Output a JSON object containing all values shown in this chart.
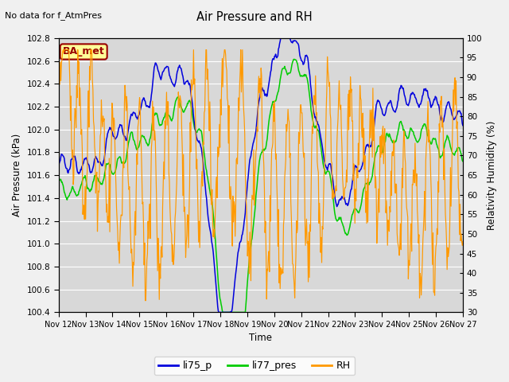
{
  "title": "Air Pressure and RH",
  "top_left_text": "No data for f_AtmPres",
  "ylabel_left": "Air Pressure (kPa)",
  "ylabel_right": "Relativity Humidity (%)",
  "xlabel": "Time",
  "ylim_left": [
    100.4,
    102.8
  ],
  "ylim_right": [
    30,
    100
  ],
  "yticks_left": [
    100.4,
    100.6,
    100.8,
    101.0,
    101.2,
    101.4,
    101.6,
    101.8,
    102.0,
    102.2,
    102.4,
    102.6,
    102.8
  ],
  "yticks_right": [
    30,
    35,
    40,
    45,
    50,
    55,
    60,
    65,
    70,
    75,
    80,
    85,
    90,
    95,
    100
  ],
  "xtick_labels": [
    "Nov 12",
    "Nov 13",
    "Nov 14",
    "Nov 15",
    "Nov 16",
    "Nov 17",
    "Nov 18",
    "Nov 19",
    "Nov 20",
    "Nov 21",
    "Nov 22",
    "Nov 23",
    "Nov 24",
    "Nov 25",
    "Nov 26",
    "Nov 27"
  ],
  "legend_labels": [
    "li75_p",
    "li77_pres",
    "RH"
  ],
  "legend_colors": [
    "#0000dd",
    "#00cc00",
    "#ff9900"
  ],
  "fig_bg_color": "#f0f0f0",
  "plot_bg_color": "#d8d8d8",
  "box_label": "BA_met",
  "box_facecolor": "#ffff99",
  "box_edgecolor": "#990000",
  "grid_color": "#ffffff",
  "n_days": 15
}
